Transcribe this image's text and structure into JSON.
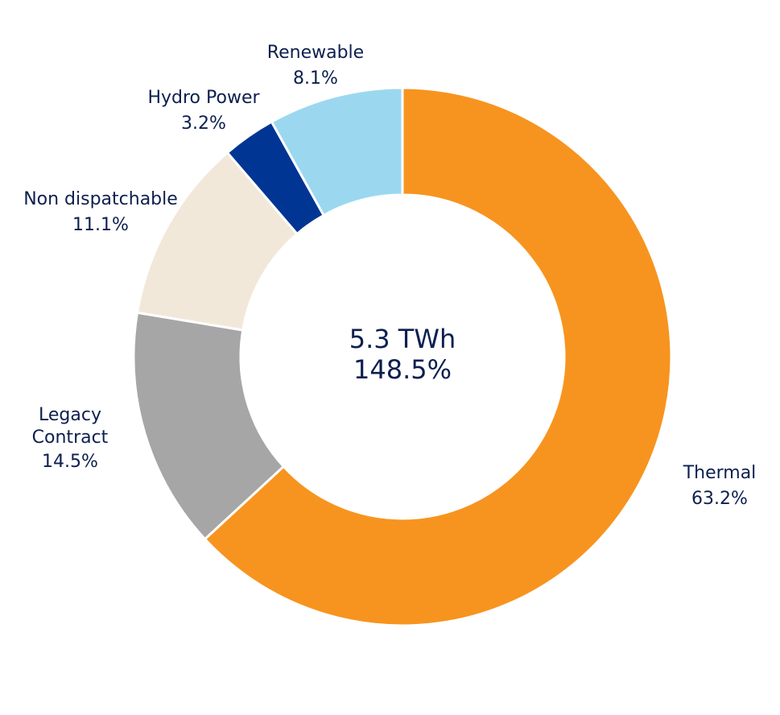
{
  "chart_data": {
    "type": "pie",
    "donut": true,
    "center_text": {
      "line1": "5.3 TWh",
      "line2": "148.5%"
    },
    "slices": [
      {
        "label": "Thermal",
        "percent_label": "63.2%",
        "value": 63.2,
        "color": "#f7941f"
      },
      {
        "label": "Legacy Contract",
        "percent_label": "14.5%",
        "value": 14.5,
        "color": "#a6a6a6"
      },
      {
        "label": "Non dispatchable",
        "percent_label": "11.1%",
        "value": 11.1,
        "color": "#f2e8d9"
      },
      {
        "label": "Hydro Power",
        "percent_label": "3.2%",
        "value": 3.2,
        "color": "#003594"
      },
      {
        "label": "Renewable",
        "percent_label": "8.1%",
        "value": 8.1,
        "color": "#9bd8f0"
      }
    ],
    "start_angle": "12 o'clock",
    "direction": "clockwise",
    "legend": "none"
  },
  "text_color": "#0d1f4f"
}
